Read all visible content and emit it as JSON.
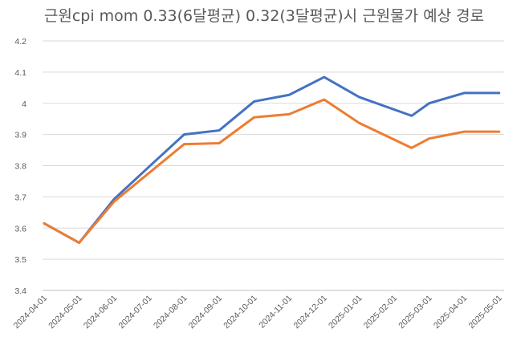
{
  "chart_data": {
    "type": "line",
    "title": "근원cpi mom 0.33(6달평균) 0.32(3달평균)시 근원물가 예상 경로",
    "xlabel": "",
    "ylabel": "",
    "ylim": [
      3.4,
      4.2
    ],
    "ytick_step": 0.1,
    "yticks": [
      "3.4",
      "3.5",
      "3.6",
      "3.7",
      "3.8",
      "3.9",
      "4",
      "4.1",
      "4.2"
    ],
    "grid": true,
    "legend": "none",
    "categories": [
      "2024-04-01",
      "2024-05-01",
      "2024-06-01",
      "2024-07-01",
      "2024-08-01",
      "2024-09-01",
      "2024-10-01",
      "2024-11-01",
      "2024-12-01",
      "2025-01-01",
      "2025-02-01",
      "2025-03-01",
      "2025-04-01",
      "2025-05-01"
    ],
    "x_positions": [
      0,
      1,
      2,
      3,
      4,
      5,
      6,
      7,
      8,
      9,
      10,
      11,
      12,
      13
    ],
    "series": [
      {
        "name": "0.33 (6달평균)",
        "color": "#4472c4",
        "x": [
          0,
          1,
          2,
          3,
          4,
          5,
          6,
          7,
          8,
          9,
          10.5,
          11,
          12,
          13
        ],
        "values": [
          3.615,
          3.553,
          3.693,
          3.797,
          3.9,
          3.913,
          4.006,
          4.027,
          4.084,
          4.02,
          3.96,
          4.0,
          4.033,
          4.033
        ]
      },
      {
        "name": "0.32 (3달평균)",
        "color": "#ed7d31",
        "x": [
          0,
          1,
          2,
          3,
          4,
          5,
          6,
          7,
          8,
          9,
          10.5,
          11,
          12,
          13
        ],
        "values": [
          3.615,
          3.553,
          3.685,
          3.777,
          3.869,
          3.872,
          3.955,
          3.965,
          4.012,
          3.937,
          3.857,
          3.887,
          3.909,
          3.909
        ]
      }
    ]
  }
}
